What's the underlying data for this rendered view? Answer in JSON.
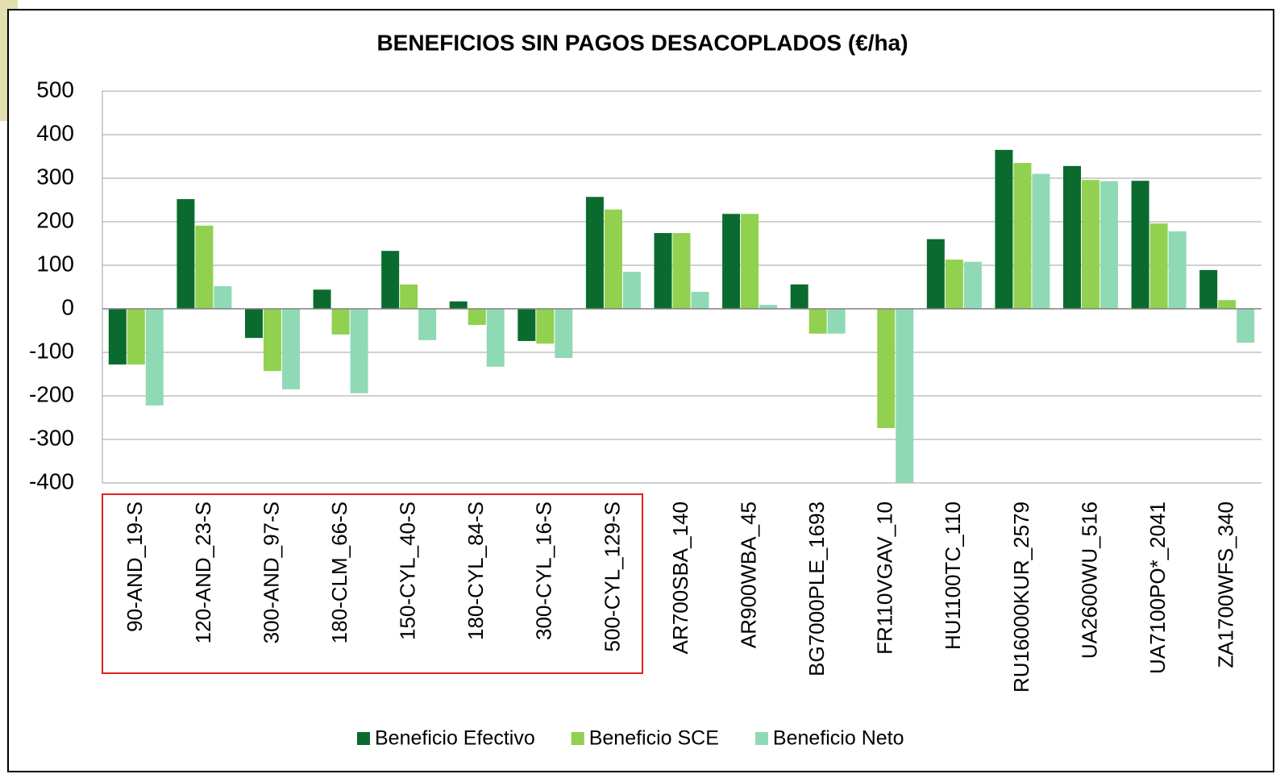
{
  "chart_data": {
    "type": "bar",
    "title": "BENEFICIOS SIN PAGOS DESACOPLADOS (€/ha)",
    "categories": [
      "90-AND_19-S",
      "120-AND_23-S",
      "300-AND_97-S",
      "180-CLM_66-S",
      "150-CYL_40-S",
      "180-CYL_84-S",
      "300-CYL_16-S",
      "500-CYL_129-S",
      "AR700SBA_140",
      "AR900WBA_45",
      "BG7000PLE_1693",
      "FR110VGAV_10",
      "HU1100TC_110",
      "RU16000KUR_2579",
      "UA2600WU_516",
      "UA7100PO*_2041",
      "ZA1700WFS_340"
    ],
    "series": [
      {
        "name": "Beneficio Efectivo",
        "color": "#0b6b2f",
        "values": [
          -128,
          252,
          -67,
          44,
          133,
          17,
          -74,
          257,
          174,
          218,
          56,
          0,
          160,
          365,
          328,
          294,
          89
        ]
      },
      {
        "name": "Beneficio SCE",
        "color": "#92d050",
        "values": [
          -128,
          191,
          -143,
          -59,
          56,
          -37,
          -80,
          228,
          174,
          218,
          -57,
          -274,
          113,
          335,
          296,
          196,
          20
        ]
      },
      {
        "name": "Beneficio Neto",
        "color": "#8fdab4",
        "values": [
          -222,
          52,
          -185,
          -194,
          -72,
          -133,
          -113,
          85,
          39,
          9,
          -57,
          -400,
          108,
          310,
          293,
          178,
          -78
        ]
      }
    ],
    "ylim": [
      -400,
      500
    ],
    "yticks": [
      -400,
      -300,
      -200,
      -100,
      0,
      100,
      200,
      300,
      400,
      500
    ],
    "grid": true,
    "legend": "bottom"
  }
}
